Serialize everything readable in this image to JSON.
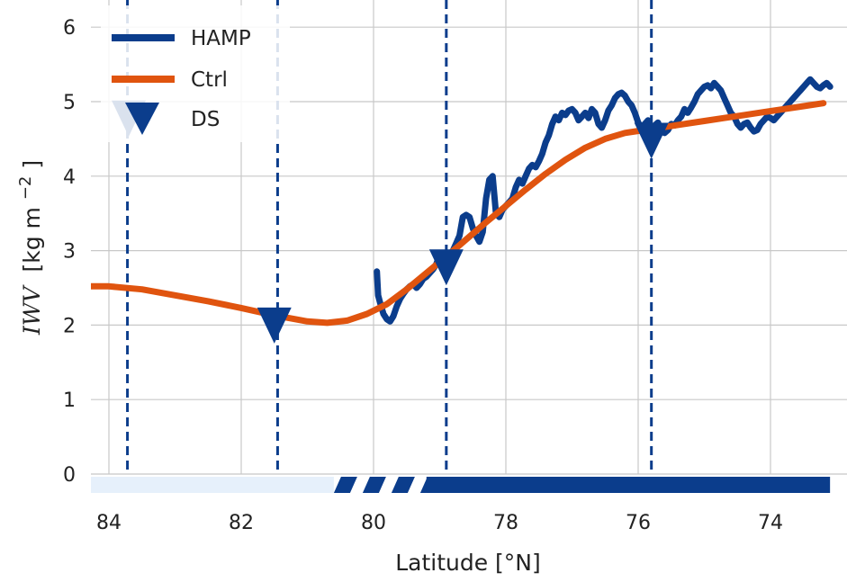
{
  "chart_data": {
    "type": "line",
    "title": "",
    "xlabel": "Latitude [°N]",
    "ylabel_symbol": "IWV",
    "ylabel_units": "[kg m",
    "ylabel_exp": "−2",
    "ylabel_close": "]",
    "xlim": [
      84.3,
      73.1
    ],
    "ylim": [
      -0.25,
      6.3
    ],
    "x_inverted": true,
    "grid": true,
    "x_ticks": [
      84,
      82,
      80,
      78,
      76,
      74
    ],
    "x_tick_labels": [
      "84",
      "82",
      "80",
      "78",
      "76",
      "74"
    ],
    "y_ticks": [
      0,
      1,
      2,
      3,
      4,
      5,
      6
    ],
    "y_tick_labels": [
      "0",
      "1",
      "2",
      "3",
      "4",
      "5",
      "6"
    ],
    "legend": {
      "position": "top-left",
      "entries": [
        "HAMP",
        "Ctrl",
        "DS"
      ]
    },
    "colors": {
      "hamp": "#0b3d8c",
      "ctrl": "#e0540f",
      "ds": "#0b3d8c",
      "bar_light": "#e6f0fb",
      "bar_dark": "#0b3d8c"
    },
    "series": [
      {
        "name": "HAMP",
        "x": [
          79.95,
          79.93,
          79.9,
          79.85,
          79.8,
          79.75,
          79.7,
          79.65,
          79.6,
          79.55,
          79.5,
          79.45,
          79.4,
          79.35,
          79.3,
          79.25,
          79.2,
          79.15,
          79.1,
          79.05,
          79.0,
          78.95,
          78.9,
          78.85,
          78.8,
          78.75,
          78.7,
          78.65,
          78.6,
          78.55,
          78.5,
          78.45,
          78.4,
          78.35,
          78.3,
          78.25,
          78.2,
          78.15,
          78.1,
          78.05,
          78.0,
          77.95,
          77.9,
          77.85,
          77.8,
          77.75,
          77.7,
          77.65,
          77.6,
          77.55,
          77.5,
          77.45,
          77.4,
          77.35,
          77.3,
          77.25,
          77.2,
          77.15,
          77.1,
          77.05,
          77.0,
          76.95,
          76.9,
          76.85,
          76.8,
          76.75,
          76.7,
          76.65,
          76.6,
          76.55,
          76.5,
          76.45,
          76.4,
          76.35,
          76.3,
          76.25,
          76.2,
          76.15,
          76.1,
          76.05,
          76.0,
          75.95,
          75.9,
          75.85,
          75.8,
          75.75,
          75.7,
          75.65,
          75.6,
          75.55,
          75.5,
          75.45,
          75.4,
          75.35,
          75.3,
          75.25,
          75.2,
          75.15,
          75.1,
          75.05,
          75.0,
          74.95,
          74.9,
          74.85,
          74.8,
          74.75,
          74.7,
          74.65,
          74.6,
          74.55,
          74.5,
          74.45,
          74.4,
          74.35,
          74.3,
          74.25,
          74.2,
          74.15,
          74.1,
          74.05,
          74.0,
          73.95,
          73.9,
          73.85,
          73.8,
          73.75,
          73.7,
          73.65,
          73.6,
          73.55,
          73.5,
          73.45,
          73.4,
          73.35,
          73.3,
          73.25,
          73.2,
          73.15,
          73.1
        ],
        "values": [
          2.72,
          2.4,
          2.3,
          2.15,
          2.08,
          2.05,
          2.12,
          2.25,
          2.35,
          2.42,
          2.48,
          2.52,
          2.55,
          2.5,
          2.55,
          2.62,
          2.65,
          2.7,
          2.75,
          2.82,
          2.95,
          2.88,
          2.9,
          2.95,
          3.0,
          3.1,
          3.2,
          3.45,
          3.48,
          3.45,
          3.3,
          3.2,
          3.12,
          3.25,
          3.7,
          3.95,
          4.0,
          3.5,
          3.45,
          3.55,
          3.6,
          3.65,
          3.7,
          3.85,
          3.95,
          3.9,
          4.0,
          4.1,
          4.15,
          4.12,
          4.2,
          4.3,
          4.45,
          4.55,
          4.7,
          4.8,
          4.75,
          4.85,
          4.82,
          4.88,
          4.9,
          4.85,
          4.75,
          4.8,
          4.85,
          4.78,
          4.9,
          4.85,
          4.7,
          4.65,
          4.75,
          4.88,
          4.95,
          5.05,
          5.1,
          5.12,
          5.08,
          5.0,
          4.95,
          4.85,
          4.72,
          4.65,
          4.7,
          4.75,
          4.62,
          4.68,
          4.72,
          4.6,
          4.58,
          4.62,
          4.7,
          4.68,
          4.75,
          4.8,
          4.9,
          4.85,
          4.92,
          5.0,
          5.1,
          5.15,
          5.2,
          5.22,
          5.18,
          5.25,
          5.2,
          5.15,
          5.05,
          4.95,
          4.85,
          4.8,
          4.7,
          4.65,
          4.7,
          4.72,
          4.65,
          4.6,
          4.62,
          4.7,
          4.75,
          4.8,
          4.78,
          4.75,
          4.8,
          4.85,
          4.9,
          4.95,
          5.0,
          5.05,
          5.1,
          5.15,
          5.2,
          5.25,
          5.3,
          5.25,
          5.2,
          5.18,
          5.22,
          5.25,
          5.2
        ]
      },
      {
        "name": "Ctrl",
        "x": [
          84.3,
          84.0,
          83.5,
          83.0,
          82.5,
          82.0,
          81.5,
          81.0,
          80.7,
          80.4,
          80.1,
          79.8,
          79.5,
          79.2,
          78.9,
          78.6,
          78.3,
          78.0,
          77.7,
          77.4,
          77.1,
          76.8,
          76.5,
          76.2,
          75.9,
          75.6,
          75.3,
          75.0,
          74.7,
          74.4,
          74.1,
          73.8,
          73.5,
          73.2
        ],
        "values": [
          2.52,
          2.52,
          2.48,
          2.4,
          2.32,
          2.23,
          2.13,
          2.05,
          2.03,
          2.06,
          2.15,
          2.28,
          2.48,
          2.7,
          2.92,
          3.15,
          3.38,
          3.6,
          3.82,
          4.03,
          4.22,
          4.38,
          4.5,
          4.58,
          4.62,
          4.66,
          4.7,
          4.74,
          4.78,
          4.82,
          4.86,
          4.9,
          4.94,
          4.98
        ]
      }
    ],
    "ds_markers": {
      "name": "DS",
      "x": [
        83.7,
        81.5,
        78.9,
        75.8
      ],
      "y": [
        4.75,
        1.97,
        2.75,
        4.45
      ]
    },
    "ds_vertical_lines": [
      83.72,
      81.45,
      78.9,
      75.8
    ],
    "bottom_bar": {
      "light_segment": [
        84.3,
        80.6
      ],
      "hatched_segment": [
        80.6,
        79.2
      ],
      "dark_segment": [
        79.2,
        73.1
      ]
    }
  }
}
